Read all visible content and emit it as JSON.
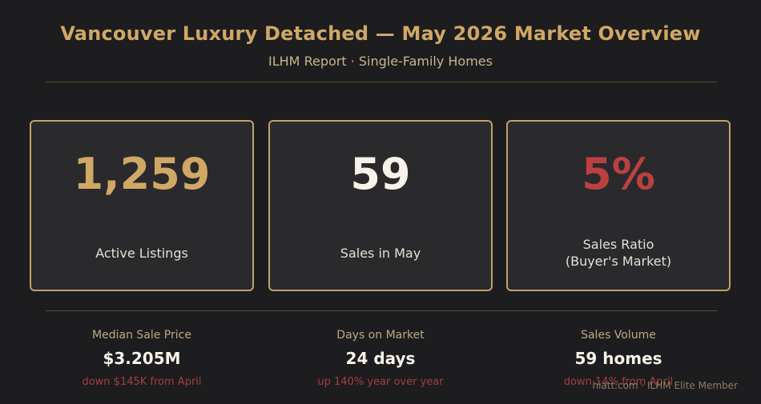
{
  "header": {
    "title": "Vancouver Luxury Detached — May 2026 Market Overview",
    "subtitle": "ILHM Report  ·  Single-Family Homes"
  },
  "cards": [
    {
      "value": "1,259",
      "label_lines": [
        "Active Listings"
      ],
      "color": "#cfa865"
    },
    {
      "value": "59",
      "label_lines": [
        "Sales in May"
      ],
      "color": "#f7f3ea"
    },
    {
      "value": "5%",
      "label_lines": [
        "Sales Ratio",
        "(Buyer's Market)"
      ],
      "color": "#bc4040"
    }
  ],
  "stats": [
    {
      "label": "Median Sale Price",
      "value": "$3.205M",
      "change": "down $145K from April"
    },
    {
      "label": "Days on Market",
      "value": "24 days",
      "change": "up 140% year over year"
    },
    {
      "label": "Sales Volume",
      "value": "59 homes",
      "change": "down 14% from April"
    }
  ],
  "footer": {
    "text": "hiatt.com  ·  ILHM Elite Member"
  },
  "colors": {
    "background": "#1d1c1e",
    "accent_gold": "#cfa865",
    "negative_red": "#bc4040"
  }
}
